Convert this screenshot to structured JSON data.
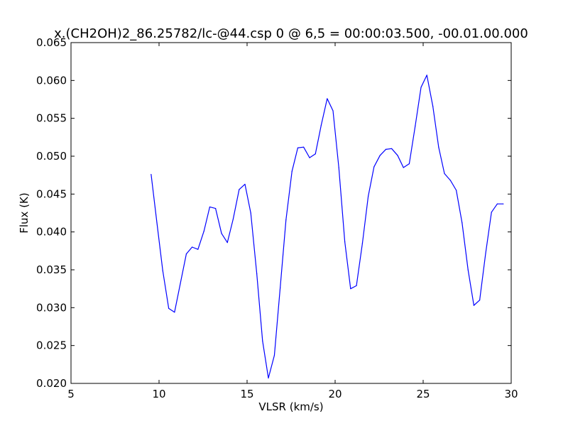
{
  "chart_data": {
    "type": "line",
    "title": "x.(CH2OH)2_86.25782/lc-@44.csp 0 @ 6,5 = 00:00:03.500, -00.01.00.000",
    "xlabel": "VLSR (km/s)",
    "ylabel": "Flux (K)",
    "xlim": [
      5,
      30
    ],
    "ylim": [
      0.02,
      0.065
    ],
    "x_ticks": [
      5,
      10,
      15,
      20,
      25,
      30
    ],
    "x_tick_labels": [
      "5",
      "10",
      "15",
      "20",
      "25",
      "30"
    ],
    "y_ticks": [
      0.02,
      0.025,
      0.03,
      0.035,
      0.04,
      0.045,
      0.05,
      0.055,
      0.06,
      0.065
    ],
    "y_tick_labels": [
      "0.020",
      "0.025",
      "0.030",
      "0.035",
      "0.040",
      "0.045",
      "0.050",
      "0.055",
      "0.060",
      "0.065"
    ],
    "grid": false,
    "series": [
      {
        "color": "#0000ff",
        "x": [
          9.55,
          9.88,
          10.21,
          10.55,
          10.88,
          11.21,
          11.55,
          11.88,
          12.21,
          12.55,
          12.88,
          13.21,
          13.55,
          13.88,
          14.21,
          14.55,
          14.88,
          15.21,
          15.55,
          15.88,
          16.21,
          16.55,
          16.88,
          17.21,
          17.55,
          17.88,
          18.21,
          18.55,
          18.88,
          19.21,
          19.55,
          19.88,
          20.21,
          20.55,
          20.88,
          21.21,
          21.55,
          21.88,
          22.21,
          22.55,
          22.88,
          23.21,
          23.55,
          23.88,
          24.21,
          24.55,
          24.88,
          25.21,
          25.55,
          25.88,
          26.21,
          26.55,
          26.88,
          27.21,
          27.55,
          27.88,
          28.21,
          28.55,
          28.88,
          29.21,
          29.55
        ],
        "y": [
          0.0476,
          0.0412,
          0.0349,
          0.0299,
          0.0294,
          0.0332,
          0.0371,
          0.038,
          0.0377,
          0.0401,
          0.0433,
          0.0431,
          0.0398,
          0.0386,
          0.0417,
          0.0456,
          0.0463,
          0.0425,
          0.0345,
          0.0256,
          0.0207,
          0.0237,
          0.0326,
          0.0416,
          0.048,
          0.0511,
          0.0512,
          0.0498,
          0.0503,
          0.0541,
          0.0576,
          0.056,
          0.0485,
          0.0387,
          0.0325,
          0.0329,
          0.0385,
          0.0447,
          0.0486,
          0.0501,
          0.0509,
          0.051,
          0.0501,
          0.0485,
          0.049,
          0.054,
          0.0591,
          0.0607,
          0.0566,
          0.0512,
          0.0477,
          0.0468,
          0.0455,
          0.0412,
          0.035,
          0.0303,
          0.031,
          0.0372,
          0.0426,
          0.0437,
          0.0437
        ]
      }
    ]
  }
}
